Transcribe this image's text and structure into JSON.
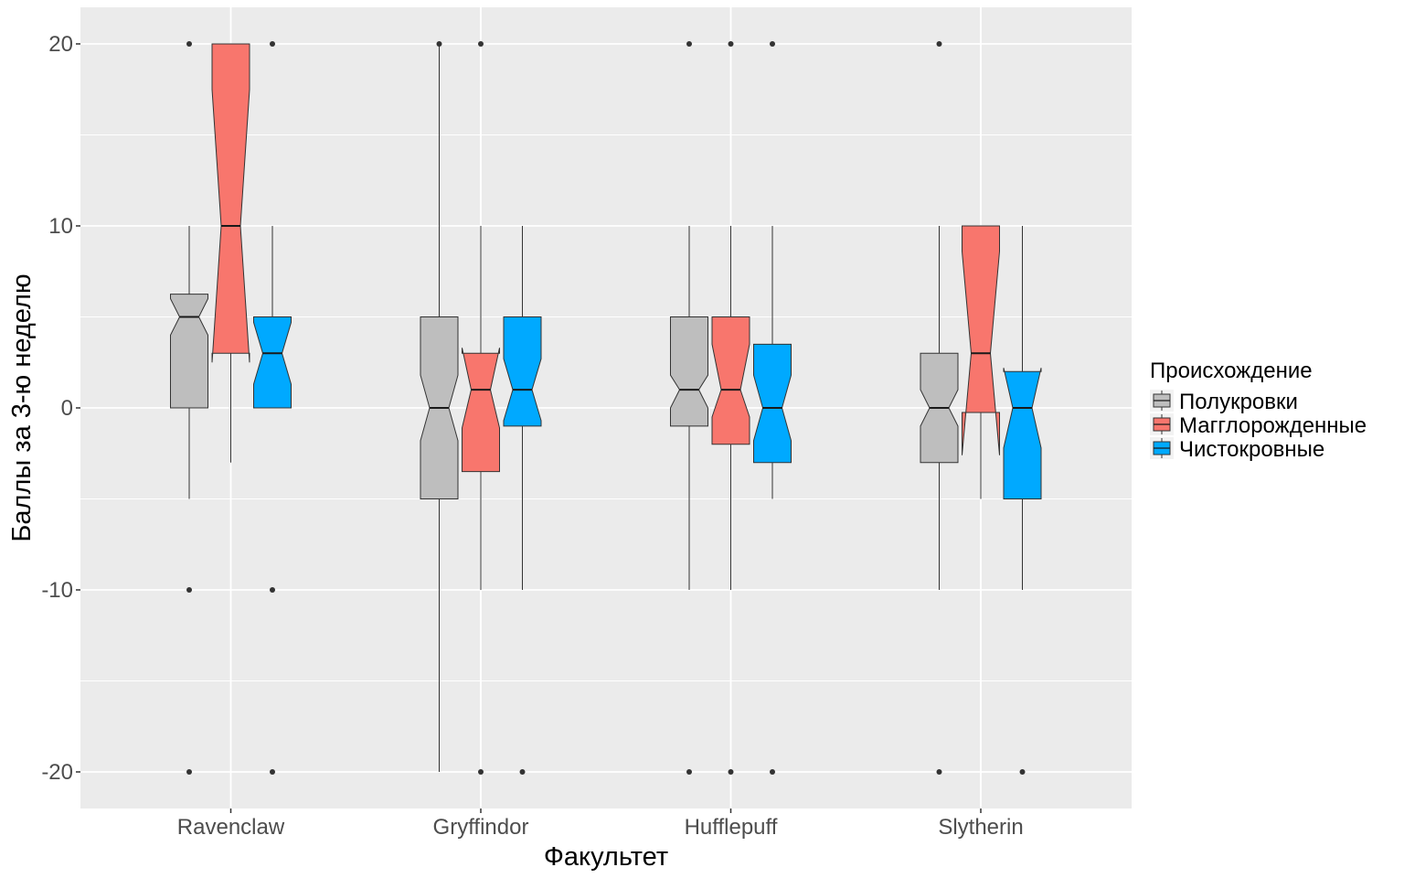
{
  "chart_data": {
    "type": "boxplot",
    "notched": true,
    "xlabel": "Факультет",
    "ylabel": "Баллы за 3-ю неделю",
    "ylim": [
      -22,
      22
    ],
    "yticks": [
      -20,
      -10,
      0,
      10,
      20
    ],
    "grid": true,
    "legend": {
      "title": "Происхождение",
      "placement": "right"
    },
    "categories": [
      "Ravenclaw",
      "Gryffindor",
      "Hufflepuff",
      "Slytherin"
    ],
    "series": [
      {
        "name": "Полукровки",
        "color": "#bebebe",
        "boxes": [
          {
            "whisker_low": -5,
            "q1": 0,
            "median": 5,
            "q3": 6.25,
            "whisker_high": 10,
            "notch_low": 4,
            "notch_high": 6,
            "outliers": [
              20,
              -10,
              -20
            ]
          },
          {
            "whisker_low": -20,
            "q1": -5,
            "median": 0,
            "q3": 5,
            "whisker_high": 20,
            "notch_low": -1.8,
            "notch_high": 1.8,
            "outliers": [
              20
            ]
          },
          {
            "whisker_low": -10,
            "q1": -1,
            "median": 1,
            "q3": 5,
            "whisker_high": 10,
            "notch_low": 0,
            "notch_high": 1.8,
            "outliers": [
              20,
              -20
            ]
          },
          {
            "whisker_low": -10,
            "q1": -3,
            "median": 0,
            "q3": 3,
            "whisker_high": 10,
            "notch_low": -1,
            "notch_high": 1,
            "outliers": [
              20,
              -20
            ]
          }
        ]
      },
      {
        "name": "Магглорожденные",
        "color": "#f8766d",
        "boxes": [
          {
            "whisker_low": -3,
            "q1": 3,
            "median": 10,
            "q3": 20,
            "whisker_high": 20,
            "notch_low": 2.5,
            "notch_high": 17.5,
            "outliers": []
          },
          {
            "whisker_low": -10,
            "q1": -3.5,
            "median": 1,
            "q3": 3,
            "whisker_high": 10,
            "notch_low": -1.1,
            "notch_high": 3.3,
            "outliers": [
              20,
              -20
            ]
          },
          {
            "whisker_low": -10,
            "q1": -2,
            "median": 1,
            "q3": 5,
            "whisker_high": 10,
            "notch_low": -0.5,
            "notch_high": 3.5,
            "outliers": [
              20,
              -20
            ]
          },
          {
            "whisker_low": -5,
            "q1": -0.25,
            "median": 3,
            "q3": 10,
            "whisker_high": 10,
            "notch_low": -2.6,
            "notch_high": 8.6,
            "outliers": []
          }
        ]
      },
      {
        "name": "Чистокровные",
        "color": "#00a9ff",
        "boxes": [
          {
            "whisker_low": 0,
            "q1": 0,
            "median": 3,
            "q3": 5,
            "whisker_high": 10,
            "notch_low": 1.3,
            "notch_high": 4.7,
            "outliers": [
              20,
              -10,
              -20
            ]
          },
          {
            "whisker_low": -10,
            "q1": -1,
            "median": 1,
            "q3": 5,
            "whisker_high": 10,
            "notch_low": -0.7,
            "notch_high": 2.7,
            "outliers": [
              -20
            ]
          },
          {
            "whisker_low": -5,
            "q1": -3,
            "median": 0,
            "q3": 3.5,
            "whisker_high": 10,
            "notch_low": -1.8,
            "notch_high": 1.8,
            "outliers": [
              20,
              -20
            ]
          },
          {
            "whisker_low": -10,
            "q1": -5,
            "median": 0,
            "q3": 2,
            "whisker_high": 10,
            "notch_low": -2.2,
            "notch_high": 2.2,
            "outliers": [
              -20
            ]
          }
        ]
      }
    ]
  }
}
